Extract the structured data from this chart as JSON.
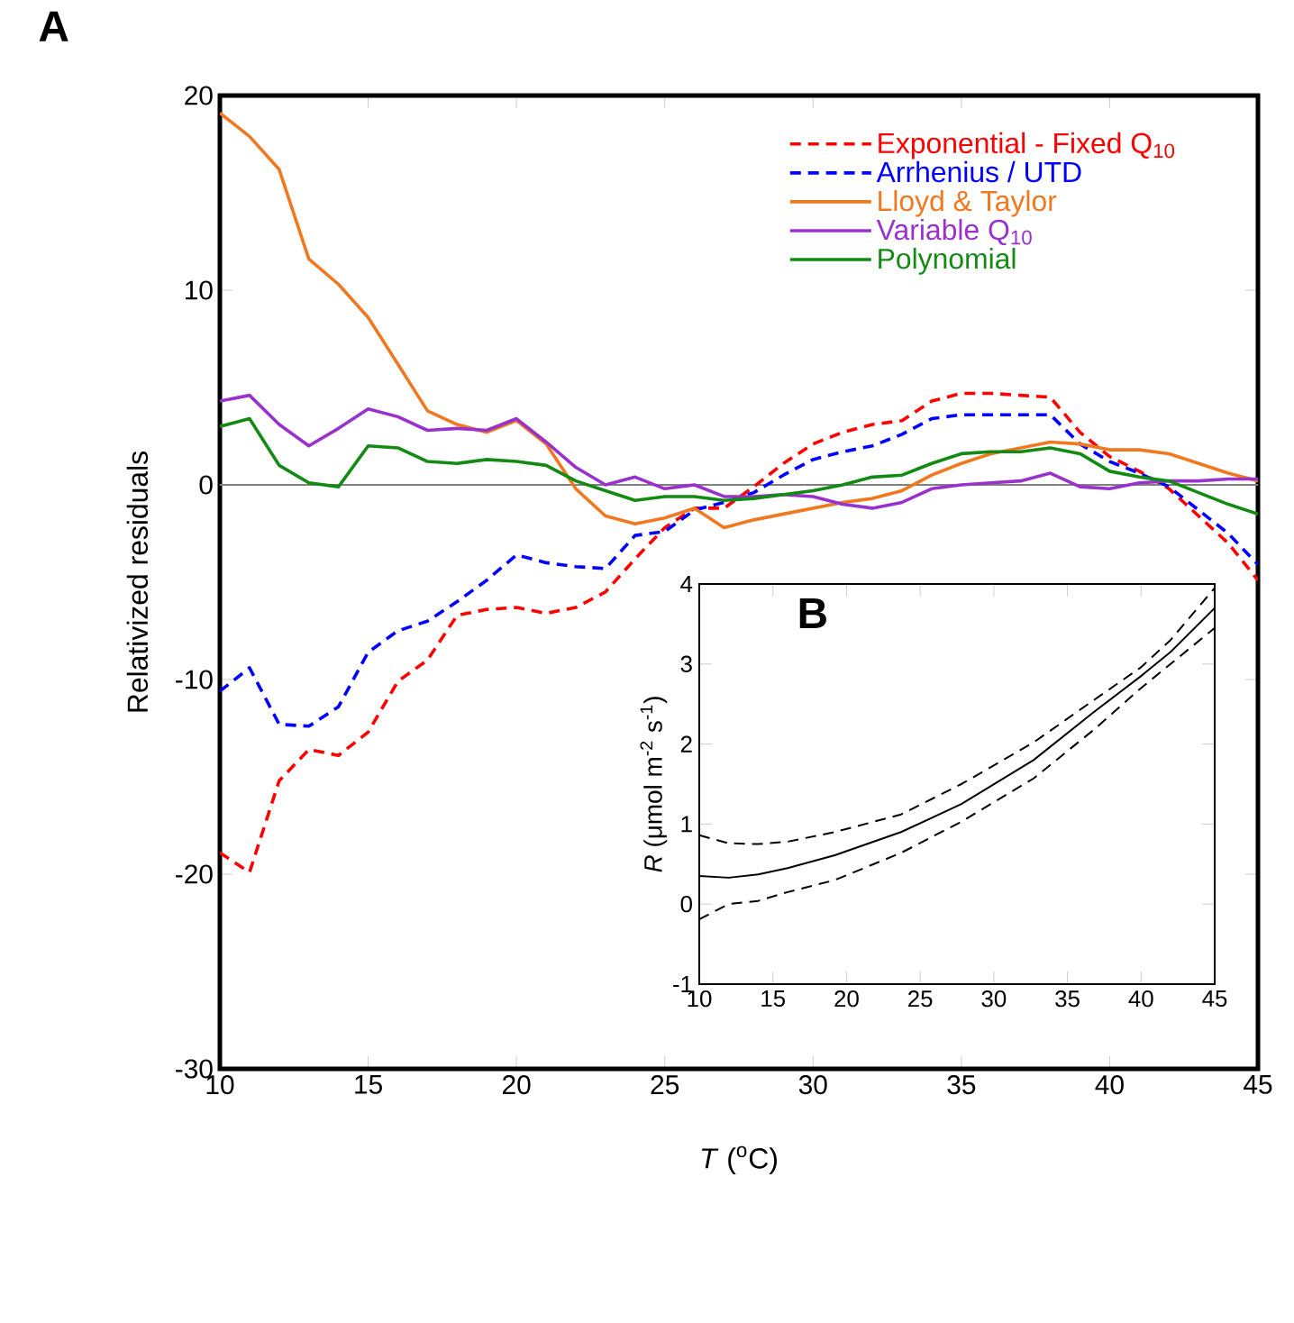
{
  "chart_data": [
    {
      "type": "line",
      "title": "A",
      "xlabel": "*T* ($^{o}$C)",
      "ylabel": "Relativized residuals",
      "xlim": [
        10,
        45
      ],
      "ylim": [
        -30,
        20
      ],
      "xticks": [
        10,
        15,
        20,
        25,
        30,
        35,
        40,
        45
      ],
      "yticks": [
        -30,
        -20,
        -10,
        0,
        10,
        20
      ],
      "legend": "top right",
      "grid": false,
      "x": [
        10,
        11,
        12,
        13,
        14,
        15,
        16,
        17,
        18,
        19,
        20,
        21,
        22,
        23,
        24,
        25,
        26,
        27,
        28,
        29,
        30,
        31,
        32,
        33,
        34,
        35,
        36,
        37,
        38,
        39,
        40,
        41,
        42,
        43,
        44,
        45
      ],
      "ref_lines": [
        {
          "axis": "y",
          "value": 0,
          "color": "#808080"
        }
      ],
      "series": [
        {
          "name": "Exponential - Fixed Q$_{10}$",
          "color": "#ff0000",
          "line_style": "dashed",
          "values": [
            -18.9,
            -19.9,
            -15.2,
            -13.6,
            -13.9,
            -12.7,
            -10.1,
            -9.0,
            -6.7,
            -6.4,
            -6.3,
            -6.6,
            -6.3,
            -5.5,
            -3.8,
            -2.2,
            -1.2,
            -1.2,
            -0.1,
            1.1,
            2.1,
            2.7,
            3.1,
            3.3,
            4.3,
            4.7,
            4.7,
            4.6,
            4.5,
            2.7,
            1.45,
            0.7,
            -0.2,
            -1.6,
            -3.0,
            -4.9
          ]
        },
        {
          "name": "Arrhenius / UTD",
          "color": "#0000ff",
          "line_style": "dashed",
          "values": [
            -10.6,
            -9.4,
            -12.3,
            -12.4,
            -11.4,
            -8.6,
            -7.5,
            -7.0,
            -6.0,
            -4.9,
            -3.6,
            -4.0,
            -4.2,
            -4.3,
            -2.6,
            -2.4,
            -1.3,
            -0.9,
            -0.4,
            0.5,
            1.3,
            1.7,
            2.0,
            2.6,
            3.4,
            3.6,
            3.6,
            3.6,
            3.6,
            2.1,
            1.2,
            0.6,
            -0.1,
            -1.3,
            -2.5,
            -4.1
          ]
        },
        {
          "name": "Lloyd & Taylor",
          "color": "#f07820",
          "line_style": "solid",
          "values": [
            19.1,
            17.9,
            16.2,
            11.6,
            10.3,
            8.6,
            6.2,
            3.8,
            3.1,
            2.7,
            3.3,
            2.1,
            -0.2,
            -1.6,
            -2.0,
            -1.7,
            -1.2,
            -2.2,
            -1.8,
            -1.5,
            -1.2,
            -0.9,
            -0.7,
            -0.3,
            0.5,
            1.1,
            1.6,
            1.9,
            2.2,
            2.1,
            1.8,
            1.8,
            1.6,
            1.1,
            0.6,
            0.2
          ]
        },
        {
          "name": "Variable Q$_{10}$",
          "color": "#9932cc",
          "line_style": "solid",
          "values": [
            4.3,
            4.6,
            3.1,
            2.0,
            2.9,
            3.9,
            3.5,
            2.8,
            2.9,
            2.8,
            3.4,
            2.2,
            0.9,
            0.0,
            0.4,
            -0.2,
            0.0,
            -0.6,
            -0.6,
            -0.5,
            -0.6,
            -1.0,
            -1.2,
            -0.9,
            -0.2,
            0.0,
            0.1,
            0.2,
            0.6,
            -0.1,
            -0.2,
            0.1,
            0.2,
            0.2,
            0.3,
            0.3
          ]
        },
        {
          "name": "Polynomial",
          "color": "#138a13",
          "line_style": "solid",
          "values": [
            3.0,
            3.4,
            1.0,
            0.1,
            -0.1,
            2.0,
            1.9,
            1.2,
            1.1,
            1.3,
            1.2,
            1.0,
            0.2,
            -0.3,
            -0.8,
            -0.6,
            -0.6,
            -0.8,
            -0.7,
            -0.5,
            -0.3,
            0.0,
            0.4,
            0.5,
            1.1,
            1.6,
            1.7,
            1.7,
            1.9,
            1.6,
            0.7,
            0.4,
            0.2,
            -0.4,
            -1.0,
            -1.5
          ]
        }
      ]
    },
    {
      "type": "line",
      "title": "B",
      "ylabel": "*R* (μmol m$^{-2}$ s$^{-1}$)",
      "xlim": [
        10,
        45
      ],
      "ylim": [
        -1,
        4
      ],
      "xticks": [
        10,
        15,
        20,
        25,
        30,
        35,
        40,
        45
      ],
      "yticks": [
        -1,
        0,
        1,
        2,
        3,
        4
      ],
      "grid": false,
      "legend": false,
      "x": [
        10,
        12,
        14,
        16,
        19.2,
        23.7,
        27.8,
        32.7,
        36.8,
        40,
        42,
        45
      ],
      "series": [
        {
          "color": "#000000",
          "line_style": "dashed",
          "values": [
            0.86,
            0.76,
            0.75,
            0.78,
            0.9,
            1.12,
            1.5,
            2.02,
            2.55,
            2.96,
            3.3,
            3.95
          ]
        },
        {
          "color": "#000000",
          "line_style": "solid",
          "values": [
            0.35,
            0.33,
            0.37,
            0.45,
            0.61,
            0.9,
            1.25,
            1.8,
            2.4,
            2.85,
            3.15,
            3.7
          ]
        },
        {
          "color": "#000000",
          "line_style": "dashed",
          "values": [
            -0.19,
            0.0,
            0.04,
            0.15,
            0.3,
            0.64,
            1.03,
            1.57,
            2.18,
            2.7,
            3.0,
            3.45
          ]
        }
      ]
    }
  ]
}
